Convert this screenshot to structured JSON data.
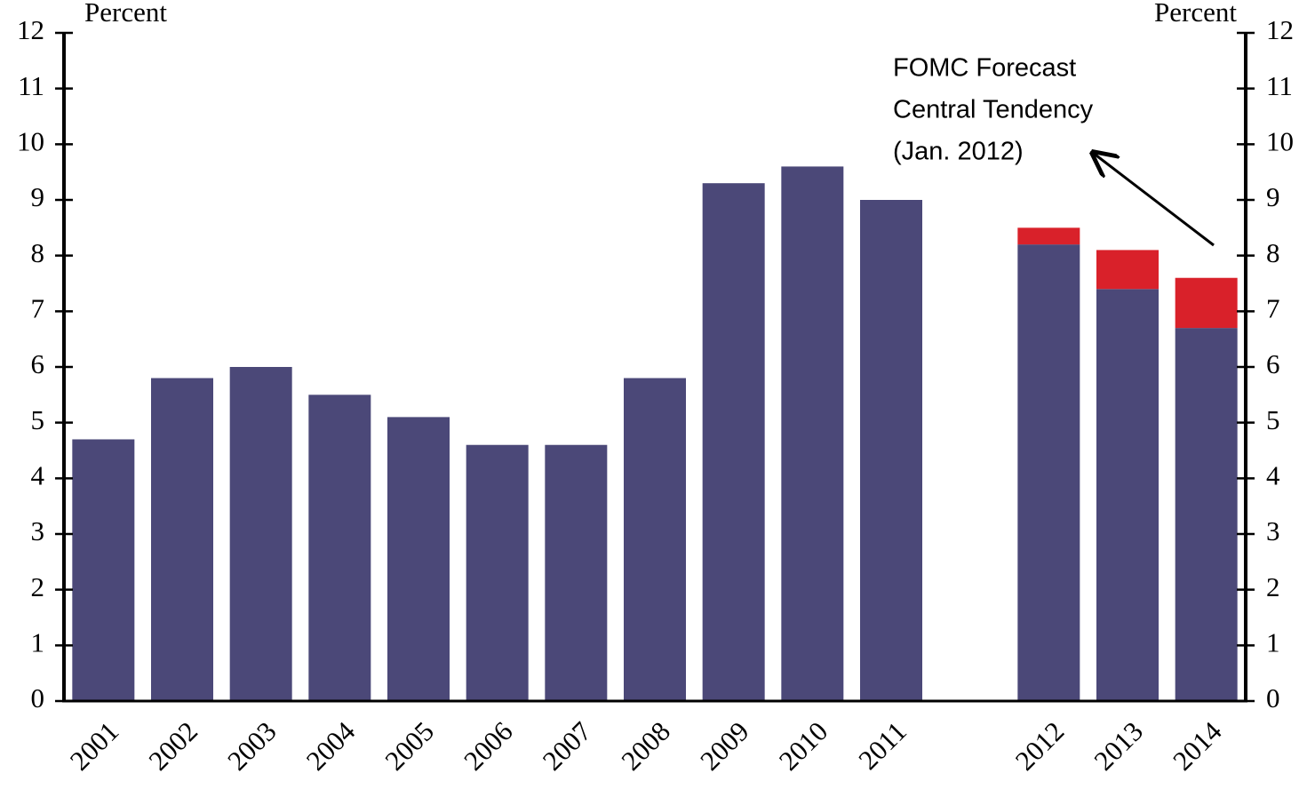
{
  "chart_data": {
    "type": "stacked_bar",
    "y_label": "Percent",
    "y2_label": "Percent",
    "annotation": [
      "FOMC Forecast",
      "Central Tendency",
      "(Jan. 2012)"
    ],
    "categories": [
      "2001",
      "2002",
      "2003",
      "2004",
      "2005",
      "2006",
      "2007",
      "2008",
      "2009",
      "2010",
      "2011",
      null,
      "2012",
      "2013",
      "2014"
    ],
    "series": [
      {
        "color": "#4b4878",
        "values": [
          4.7,
          5.8,
          6.0,
          5.5,
          5.1,
          4.6,
          4.6,
          5.8,
          9.3,
          9.6,
          9.0,
          null,
          8.2,
          7.4,
          6.7
        ]
      },
      {
        "color": "#d9212a",
        "values": [
          null,
          null,
          null,
          null,
          null,
          null,
          null,
          null,
          null,
          null,
          null,
          null,
          0.3,
          0.7,
          0.9
        ]
      }
    ],
    "ylim": [
      0,
      12
    ],
    "yticks": [
      0,
      1,
      2,
      3,
      4,
      5,
      6,
      7,
      8,
      9,
      10,
      11,
      12
    ],
    "y2lim": [
      0,
      12
    ],
    "y2ticks": [
      0,
      1,
      2,
      3,
      4,
      5,
      6,
      7,
      8,
      9,
      10,
      11,
      12
    ],
    "grid": false
  }
}
